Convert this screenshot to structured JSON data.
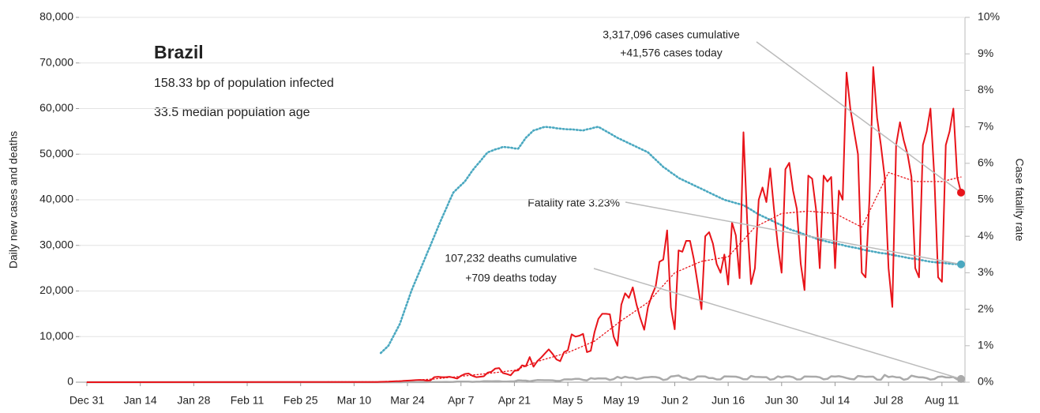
{
  "chart_data": {
    "type": "line",
    "title": "Brazil",
    "subtitle": [
      "158.33 bp of population infected",
      "33.5 median population age"
    ],
    "ylabel": "Daily new cases and deaths",
    "y2label": "Case fatality rate",
    "callouts": [
      {
        "lines": [
          "3,317,096 cases cumulative",
          "+41,576 cases today"
        ]
      },
      {
        "lines": [
          "Fatality rate 3.23%"
        ]
      },
      {
        "lines": [
          "107,232 deaths cumulative",
          "+709 deaths today"
        ]
      }
    ],
    "xlim": [
      "Dec 31",
      "Aug 16"
    ],
    "xticks": [
      "Dec 31",
      "Jan 14",
      "Jan 28",
      "Feb 11",
      "Feb 25",
      "Mar 10",
      "Mar 24",
      "Apr 7",
      "Apr 21",
      "May 5",
      "May 19",
      "Jun 2",
      "Jun 16",
      "Jun 30",
      "Jul 14",
      "Jul 28",
      "Aug 11"
    ],
    "ylim": [
      0,
      80000
    ],
    "yticks": [
      0,
      {
        "value": 10000,
        "label": "10,000"
      },
      {
        "value": 20000,
        "label": "20,000"
      },
      {
        "value": 30000,
        "label": "30,000"
      },
      {
        "value": 40000,
        "label": "40,000"
      },
      {
        "value": 50000,
        "label": "50,000"
      },
      {
        "value": 60000,
        "label": "60,000"
      },
      {
        "value": 70000,
        "label": "70,000"
      },
      {
        "value": 80000,
        "label": "80,000"
      }
    ],
    "y2lim": [
      0,
      10
    ],
    "y2ticks": [
      {
        "value": 0,
        "label": "0%"
      },
      {
        "value": 1,
        "label": "1%"
      },
      {
        "value": 2,
        "label": "2%"
      },
      {
        "value": 3,
        "label": "3%"
      },
      {
        "value": 4,
        "label": "4%"
      },
      {
        "value": 5,
        "label": "5%"
      },
      {
        "value": 6,
        "label": "6%"
      },
      {
        "value": 7,
        "label": "7%"
      },
      {
        "value": 8,
        "label": "8%"
      },
      {
        "value": 9,
        "label": "9%"
      },
      {
        "value": 10,
        "label": "10%"
      }
    ],
    "grid": true,
    "y2color": "#4aa8c0",
    "x": [
      "Dec 31",
      "Mar 16",
      "Mar 17",
      "Mar 18",
      "Mar 19",
      "Mar 20",
      "Mar 21",
      "Mar 22",
      "Mar 23",
      "Mar 24",
      "Mar 25",
      "Mar 26",
      "Mar 27",
      "Mar 28",
      "Mar 29",
      "Mar 30",
      "Mar 31",
      "Apr 1",
      "Apr 2",
      "Apr 3",
      "Apr 4",
      "Apr 5",
      "Apr 6",
      "Apr 7",
      "Apr 8",
      "Apr 9",
      "Apr 10",
      "Apr 11",
      "Apr 12",
      "Apr 13",
      "Apr 14",
      "Apr 15",
      "Apr 16",
      "Apr 17",
      "Apr 18",
      "Apr 19",
      "Apr 20",
      "Apr 21",
      "Apr 22",
      "Apr 23",
      "Apr 24",
      "Apr 25",
      "Apr 26",
      "Apr 27",
      "Apr 28",
      "Apr 29",
      "Apr 30",
      "May 1",
      "May 2",
      "May 3",
      "May 4",
      "May 5",
      "May 6",
      "May 7",
      "May 8",
      "May 9",
      "May 10",
      "May 11",
      "May 12",
      "May 13",
      "May 14",
      "May 15",
      "May 16",
      "May 17",
      "May 18",
      "May 19",
      "May 20",
      "May 21",
      "May 22",
      "May 23",
      "May 24",
      "May 25",
      "May 26",
      "May 27",
      "May 28",
      "May 29",
      "May 30",
      "May 31",
      "Jun 1",
      "Jun 2",
      "Jun 3",
      "Jun 4",
      "Jun 5",
      "Jun 6",
      "Jun 7",
      "Jun 8",
      "Jun 9",
      "Jun 10",
      "Jun 11",
      "Jun 12",
      "Jun 13",
      "Jun 14",
      "Jun 15",
      "Jun 16",
      "Jun 17",
      "Jun 18",
      "Jun 19",
      "Jun 20",
      "Jun 21",
      "Jun 22",
      "Jun 23",
      "Jun 24",
      "Jun 25",
      "Jun 26",
      "Jun 27",
      "Jun 28",
      "Jun 29",
      "Jun 30",
      "Jul 1",
      "Jul 2",
      "Jul 3",
      "Jul 4",
      "Jul 5",
      "Jul 6",
      "Jul 7",
      "Jul 8",
      "Jul 9",
      "Jul 10",
      "Jul 11",
      "Jul 12",
      "Jul 13",
      "Jul 14",
      "Jul 15",
      "Jul 16",
      "Jul 17",
      "Jul 18",
      "Jul 19",
      "Jul 20",
      "Jul 21",
      "Jul 22",
      "Jul 23",
      "Jul 24",
      "Jul 25",
      "Jul 26",
      "Jul 27",
      "Jul 28",
      "Jul 29",
      "Jul 30",
      "Jul 31",
      "Aug 1",
      "Aug 2",
      "Aug 3",
      "Aug 4",
      "Aug 5",
      "Aug 6",
      "Aug 7",
      "Aug 8",
      "Aug 9",
      "Aug 10",
      "Aug 11",
      "Aug 12",
      "Aug 13",
      "Aug 14",
      "Aug 15",
      "Aug 16"
    ],
    "series": [
      {
        "color": "#e8141a",
        "style": "solid",
        "width": 2,
        "end_marker": true,
        "values": [
          0,
          50,
          90,
          110,
          120,
          180,
          220,
          200,
          300,
          350,
          400,
          450,
          500,
          480,
          350,
          400,
          1100,
          1200,
          1100,
          1100,
          1200,
          1000,
          800,
          1400,
          1800,
          1900,
          1400,
          1100,
          1200,
          1300,
          2100,
          2300,
          3000,
          3100,
          2000,
          1800,
          1500,
          2500,
          2600,
          3700,
          3500,
          5500,
          3400,
          4600,
          5400,
          6300,
          7200,
          6200,
          5000,
          4600,
          6600,
          7000,
          10500,
          10000,
          10200,
          10600,
          6600,
          6900,
          11000,
          13900,
          15000,
          15000,
          14900,
          10000,
          8000,
          17000,
          19500,
          18500,
          20800,
          17000,
          14000,
          11500,
          16500,
          19000,
          21000,
          26400,
          26900,
          33300,
          16400,
          11600,
          28900,
          28600,
          31000,
          31000,
          27000,
          21700,
          16000,
          32000,
          32900,
          30400,
          25900,
          24000,
          28000,
          21400,
          35000,
          32200,
          22800,
          54800,
          34900,
          21500,
          25000,
          40000,
          42700,
          39500,
          46900,
          38000,
          30000,
          24000,
          46700,
          48100,
          42000,
          38000,
          26000,
          20200,
          45300,
          44600,
          38000,
          25000,
          45300,
          44000,
          45000,
          25000,
          42000,
          40000,
          67900,
          60000,
          55000,
          50000,
          24000,
          23000,
          40000,
          69100,
          58000,
          52000,
          45000,
          25000,
          16500,
          52000,
          57000,
          53000,
          50000,
          45000,
          25000,
          23000,
          52000,
          55000,
          60000,
          45000,
          23000,
          22000,
          52000,
          55000,
          60000,
          45000,
          41576
        ]
      },
      {
        "color": "#e8141a",
        "style": "dotted",
        "width": 1.3,
        "values": [
          0,
          80,
          114,
          148,
          181,
          215,
          249,
          283,
          316,
          350,
          400,
          450,
          500,
          550,
          600,
          650,
          700,
          790,
          870,
          960,
          1040,
          1130,
          1210,
          1300,
          1390,
          1470,
          1560,
          1640,
          1730,
          1810,
          1900,
          2000,
          2100,
          2200,
          2300,
          2400,
          2500,
          2600,
          2910,
          3230,
          3540,
          3860,
          4170,
          4490,
          4800,
          5040,
          5290,
          5530,
          5770,
          6010,
          6260,
          6500,
          6860,
          7210,
          7570,
          7930,
          8290,
          8640,
          9000,
          9640,
          10290,
          10930,
          11570,
          12210,
          12860,
          13500,
          14070,
          14640,
          15210,
          15790,
          16360,
          16930,
          17500,
          18430,
          19360,
          20290,
          21210,
          22140,
          23070,
          24000,
          24360,
          24710,
          25070,
          25430,
          25790,
          26140,
          26500,
          26640,
          26790,
          26930,
          27070,
          27210,
          27360,
          27500,
          28430,
          29360,
          30290,
          31210,
          32140,
          33070,
          34000,
          34430,
          34860,
          35290,
          35710,
          36140,
          36570,
          37000,
          37070,
          37140,
          37210,
          37290,
          37360,
          37430,
          37500,
          37430,
          37360,
          37290,
          37210,
          37140,
          37070,
          37000,
          36570,
          36140,
          35710,
          35290,
          34860,
          34430,
          34000,
          35710,
          37430,
          39140,
          40860,
          42570,
          44290,
          46000,
          45710,
          45430,
          45140,
          44860,
          44570,
          44290,
          44000,
          44000,
          44000,
          44000,
          44000,
          44000,
          44000,
          44000,
          44200,
          44400,
          44600,
          44800,
          45000
        ]
      },
      {
        "color": "#aaaaaa",
        "style": "solid",
        "width": 2.5,
        "end_marker": true,
        "values": [
          0,
          0,
          1,
          3,
          3,
          4,
          7,
          7,
          9,
          12,
          21,
          20,
          23,
          35,
          22,
          44,
          42,
          58,
          60,
          73,
          54,
          67,
          114,
          133,
          141,
          115,
          68,
          99,
          105,
          204,
          204,
          188,
          217,
          206,
          115,
          113,
          166,
          165,
          407,
          357,
          346,
          189,
          338,
          474,
          449,
          435,
          428,
          421,
          275,
          296,
          600,
          615,
          610,
          751,
          730,
          496,
          396,
          881,
          749,
          844,
          824,
          816,
          485,
          674,
          1179,
          888,
          1188,
          1001,
          965,
          653,
          807,
          1039,
          1086,
          1156,
          1124,
          956,
          480,
          623,
          1262,
          1349,
          1473,
          1005,
          904,
          525,
          679,
          1272,
          1274,
          1239,
          909,
          892,
          612,
          627,
          1282,
          1269,
          1238,
          1206,
          1022,
          641,
          654,
          1374,
          1185,
          1141,
          1109,
          1111,
          552,
          692,
          1280,
          1038,
          1252,
          1290,
          1091,
          602,
          620,
          1254,
          1223,
          1220,
          1214,
          1071,
          631,
          733,
          1300,
          1233,
          1322,
          1163,
          921,
          716,
          632,
          1367,
          1284,
          1156,
          1211,
          1212,
          555,
          541,
          1595,
          1129,
          1262,
          1088,
          1048,
          541,
          703,
          1437,
          1226,
          1079,
          1060,
          905,
          572,
          684,
          1175,
          1262,
          1060,
          1045,
          1139,
          620,
          709
        ]
      },
      {
        "color": "#4aa8c0",
        "style": "dotted",
        "width": 2.6,
        "axis": "y2",
        "end_marker": true,
        "values": [
          null,
          null,
          0.8,
          0.9,
          1.0,
          1.2,
          1.4,
          1.6,
          1.9,
          2.2,
          2.5,
          2.75,
          3.0,
          3.25,
          3.5,
          3.75,
          4.0,
          4.25,
          4.5,
          4.73,
          4.97,
          5.2,
          5.3,
          5.4,
          5.5,
          5.65,
          5.8,
          5.93,
          6.05,
          6.18,
          6.3,
          6.34,
          6.38,
          6.41,
          6.45,
          6.44,
          6.43,
          6.41,
          6.4,
          6.55,
          6.7,
          6.8,
          6.9,
          6.93,
          6.97,
          7.0,
          6.99,
          6.98,
          6.96,
          6.95,
          6.94,
          6.93,
          6.93,
          6.92,
          6.91,
          6.9,
          6.93,
          6.95,
          6.98,
          7.0,
          6.94,
          6.88,
          6.82,
          6.76,
          6.7,
          6.65,
          6.6,
          6.55,
          6.5,
          6.45,
          6.4,
          6.35,
          6.3,
          6.2,
          6.1,
          6.0,
          5.9,
          5.83,
          5.75,
          5.68,
          5.6,
          5.55,
          5.5,
          5.45,
          5.4,
          5.35,
          5.3,
          5.25,
          5.2,
          5.15,
          5.1,
          5.05,
          5.0,
          4.97,
          4.94,
          4.91,
          4.88,
          4.85,
          4.79,
          4.73,
          4.66,
          4.6,
          4.55,
          4.5,
          4.45,
          4.4,
          4.35,
          4.3,
          4.25,
          4.2,
          4.16,
          4.13,
          4.09,
          4.05,
          4.01,
          3.98,
          3.94,
          3.9,
          3.88,
          3.85,
          3.83,
          3.8,
          3.78,
          3.76,
          3.73,
          3.71,
          3.69,
          3.67,
          3.64,
          3.62,
          3.6,
          3.58,
          3.56,
          3.54,
          3.53,
          3.51,
          3.49,
          3.47,
          3.45,
          3.43,
          3.41,
          3.39,
          3.38,
          3.36,
          3.34,
          3.32,
          3.3,
          3.29,
          3.28,
          3.27,
          3.26,
          3.25,
          3.24,
          3.24,
          3.23
        ]
      }
    ]
  }
}
